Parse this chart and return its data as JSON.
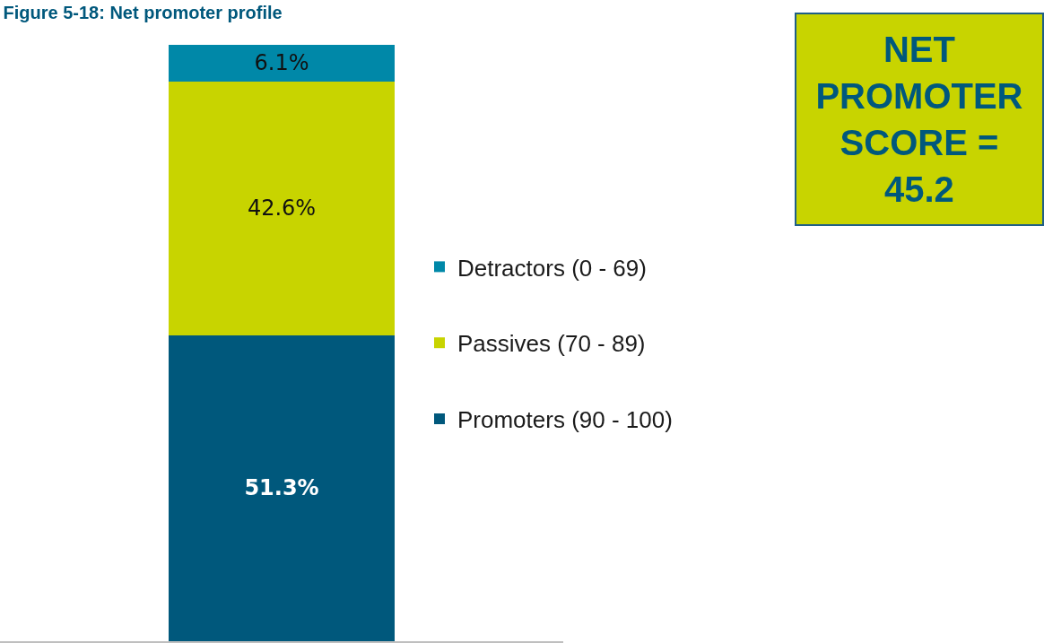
{
  "chart_data": {
    "type": "bar",
    "title": "Figure 5-18: Net promoter profile",
    "categories": [
      null
    ],
    "series": [
      {
        "name": "Promoters (90 - 100)",
        "color": "#00587c",
        "values": [
          51.3
        ],
        "value_labels": [
          "51.3%"
        ]
      },
      {
        "name": "Passives (70 - 89)",
        "color": "#c8d400",
        "values": [
          42.6
        ],
        "value_labels": [
          "42.6%"
        ]
      },
      {
        "name": "Detractors (0 - 69)",
        "color": "#0088a8",
        "values": [
          6.1
        ],
        "value_labels": [
          "6.1%"
        ]
      }
    ],
    "stacked": true,
    "ylim": [
      0,
      100
    ],
    "legend": "right",
    "annotations": [
      "NET PROMOTER SCORE = 45.2"
    ]
  }
}
